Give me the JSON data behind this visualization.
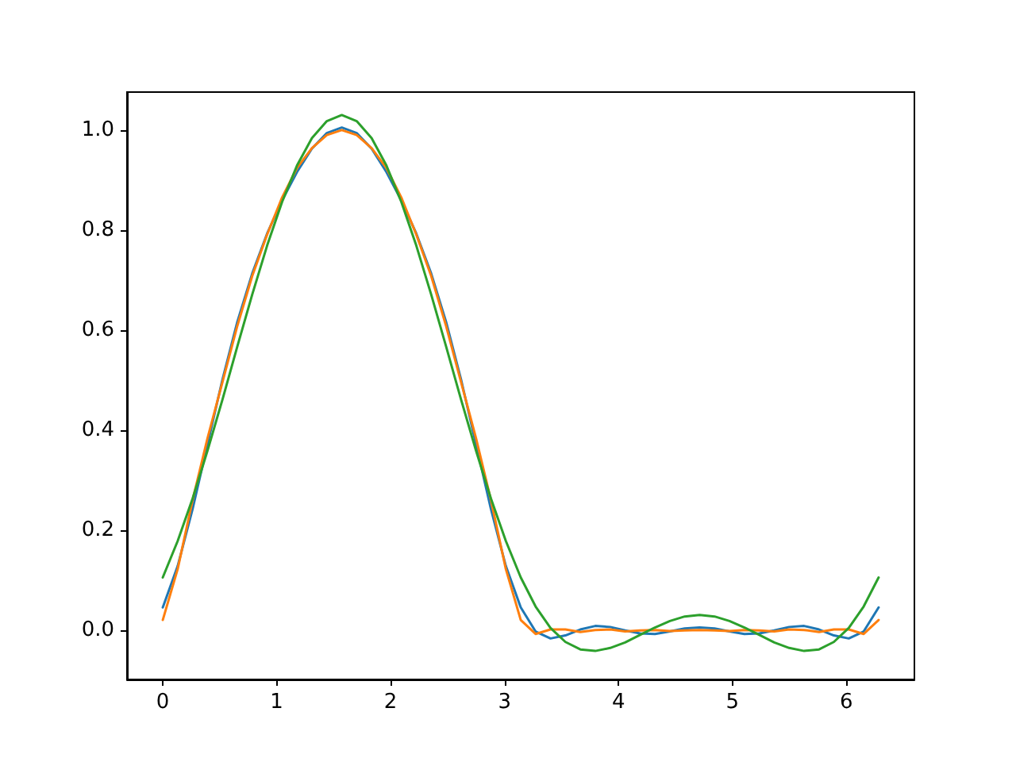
{
  "chart_data": {
    "type": "line",
    "x": [
      0,
      0.131,
      0.262,
      0.393,
      0.524,
      0.654,
      0.785,
      0.916,
      1.047,
      1.178,
      1.309,
      1.44,
      1.571,
      1.702,
      1.833,
      1.963,
      2.094,
      2.225,
      2.356,
      2.487,
      2.618,
      2.749,
      2.88,
      3.011,
      3.142,
      3.272,
      3.403,
      3.534,
      3.665,
      3.796,
      3.927,
      4.058,
      4.189,
      4.32,
      4.451,
      4.581,
      4.712,
      4.843,
      4.974,
      5.105,
      5.236,
      5.367,
      5.498,
      5.629,
      5.76,
      5.89,
      6.021,
      6.152,
      6.283
    ],
    "series": [
      {
        "color": "#1f77b4",
        "values": [
          0.046,
          0.129,
          0.243,
          0.373,
          0.502,
          0.617,
          0.714,
          0.794,
          0.86,
          0.917,
          0.964,
          0.995,
          1.006,
          0.995,
          0.964,
          0.917,
          0.86,
          0.794,
          0.714,
          0.617,
          0.502,
          0.373,
          0.243,
          0.129,
          0.046,
          -0.002,
          -0.016,
          -0.01,
          0.002,
          0.009,
          0.007,
          0,
          -0.006,
          -0.007,
          -0.002,
          0.004,
          0.006,
          0.004,
          -0.002,
          -0.007,
          -0.006,
          0,
          0.007,
          0.009,
          0.002,
          -0.01,
          -0.016,
          -0.002,
          0.046
        ]
      },
      {
        "color": "#ff7f0e",
        "values": [
          0.021,
          0.123,
          0.261,
          0.385,
          0.497,
          0.609,
          0.709,
          0.792,
          0.866,
          0.925,
          0.965,
          0.991,
          1.001,
          0.991,
          0.965,
          0.925,
          0.866,
          0.792,
          0.709,
          0.609,
          0.497,
          0.385,
          0.261,
          0.123,
          0.021,
          -0.007,
          0.002,
          0.002,
          -0.003,
          0.001,
          0.002,
          -0.002,
          0,
          0.001,
          -0.001,
          0,
          0.001,
          0,
          -0.001,
          0.001,
          0,
          -0.002,
          0.002,
          0.001,
          -0.003,
          0.002,
          0.002,
          -0.007,
          0.021
        ]
      },
      {
        "color": "#2ca02c",
        "values": [
          0.106,
          0.179,
          0.264,
          0.36,
          0.462,
          0.568,
          0.672,
          0.77,
          0.857,
          0.93,
          0.985,
          1.019,
          1.031,
          1.019,
          0.985,
          0.93,
          0.857,
          0.77,
          0.672,
          0.568,
          0.462,
          0.36,
          0.264,
          0.179,
          0.106,
          0.048,
          0.005,
          -0.023,
          -0.038,
          -0.041,
          -0.035,
          -0.024,
          -0.009,
          0.006,
          0.019,
          0.028,
          0.031,
          0.028,
          0.019,
          0.006,
          -0.009,
          -0.024,
          -0.035,
          -0.041,
          -0.038,
          -0.023,
          0.005,
          0.048,
          0.106
        ]
      }
    ],
    "xlim": [
      -0.314,
      6.597
    ],
    "xticks": [
      0,
      1,
      2,
      3,
      4,
      5,
      6
    ],
    "ylim": [
      -0.098,
      1.077
    ],
    "yticks": [
      {
        "value": 0,
        "label": "0.0"
      },
      {
        "value": 0.2,
        "label": "0.2"
      },
      {
        "value": 0.4,
        "label": "0.4"
      },
      {
        "value": 0.6,
        "label": "0.6"
      },
      {
        "value": 0.8,
        "label": "0.8"
      },
      {
        "value": 1,
        "label": "1.0"
      }
    ]
  }
}
